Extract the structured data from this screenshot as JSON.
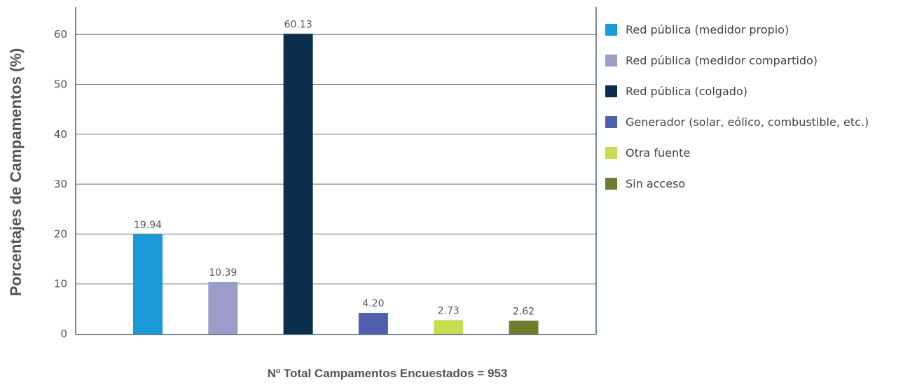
{
  "chart_data": {
    "type": "bar",
    "title": "",
    "xlabel": "Nº Total Campamentos  Encuestados = 953",
    "ylabel": "Porcentajes de Campamentos (%)",
    "ylim": [
      0,
      65
    ],
    "yticks": [
      0,
      10,
      20,
      30,
      40,
      50,
      60
    ],
    "grid": true,
    "legend_position": "right",
    "categories": [
      "Red pública (medidor propio)",
      "Red pública (medidor compartido)",
      "Red pública (colgado)",
      "Generador (solar, eólico, combustible, etc.)",
      "Otra fuente",
      "Sin acceso"
    ],
    "values": [
      19.94,
      10.39,
      60.13,
      4.2,
      2.73,
      2.62
    ],
    "value_labels": [
      "19.94",
      "10.39",
      "60.13",
      "4.20",
      "2.73",
      "2.62"
    ],
    "colors": [
      "#1a9ad7",
      "#9c9cca",
      "#0b2e4f",
      "#4f5fae",
      "#c6dc51",
      "#6e7b2c"
    ]
  }
}
